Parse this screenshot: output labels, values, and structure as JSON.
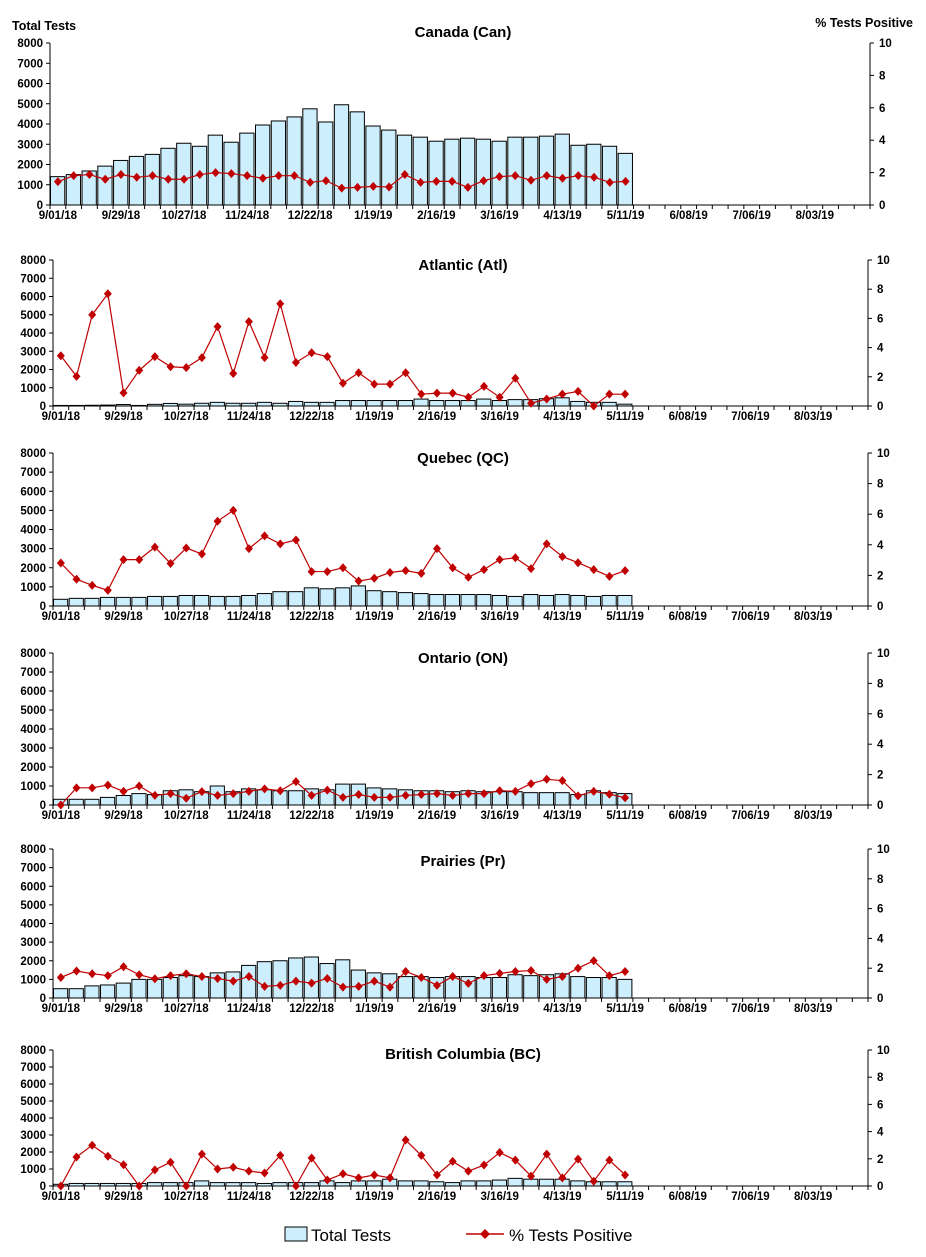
{
  "axes": {
    "left_label": "Total Tests",
    "right_label": "% Tests Positive",
    "ylim": [
      0,
      8000
    ],
    "y_ticks": [
      0,
      1000,
      2000,
      3000,
      4000,
      5000,
      6000,
      7000,
      8000
    ],
    "y2lim": [
      0,
      10
    ],
    "y2_ticks": [
      0,
      2,
      4,
      6,
      8,
      10
    ],
    "x_slots": 52,
    "x_tick_labels": [
      "9/01/18",
      "9/29/18",
      "10/27/18",
      "11/24/18",
      "12/22/18",
      "1/19/19",
      "2/16/19",
      "3/16/19",
      "4/13/19",
      "5/11/19",
      "6/08/19",
      "7/06/19",
      "8/03/19"
    ],
    "categories": [
      "9/01/18",
      "9/08/18",
      "9/15/18",
      "9/22/18",
      "9/29/18",
      "10/06/18",
      "10/13/18",
      "10/20/18",
      "10/27/18",
      "11/03/18",
      "11/10/18",
      "11/17/18",
      "11/24/18",
      "12/01/18",
      "12/08/18",
      "12/15/18",
      "12/22/18",
      "12/29/18",
      "1/05/19",
      "1/12/19",
      "1/19/19",
      "1/26/19",
      "2/02/19",
      "2/09/19",
      "2/16/19",
      "2/23/19",
      "3/02/19",
      "3/09/19",
      "3/16/19",
      "3/23/19",
      "3/30/19",
      "4/06/19",
      "4/13/19",
      "4/20/19",
      "4/27/19",
      "5/04/19",
      "5/11/19"
    ]
  },
  "legend": {
    "bars": "Total Tests",
    "line": "% Tests Positive",
    "position": "bottom"
  },
  "colors": {
    "bar_fill": "#cdeefc",
    "bar_stroke": "#000000",
    "line": "#c00000"
  },
  "chart_data": [
    {
      "type": "bar+line",
      "title": "Canada (Can)",
      "series": [
        {
          "name": "Total Tests",
          "axis": "left",
          "values": [
            1400,
            1500,
            1680,
            1920,
            2200,
            2400,
            2500,
            2800,
            3050,
            2900,
            3450,
            3100,
            3550,
            3950,
            4150,
            4350,
            4750,
            4100,
            4950,
            4600,
            3900,
            3700,
            3450,
            3350,
            3150,
            3250,
            3300,
            3250,
            3150,
            3350,
            3350,
            3400,
            3500,
            2950,
            3000,
            2900,
            2550
          ]
        },
        {
          "name": "% Tests Positive",
          "axis": "right",
          "values": [
            1.44,
            1.81,
            1.88,
            1.59,
            1.88,
            1.71,
            1.81,
            1.59,
            1.59,
            1.88,
            2.0,
            1.94,
            1.81,
            1.65,
            1.81,
            1.81,
            1.4,
            1.5,
            1.04,
            1.09,
            1.15,
            1.11,
            1.88,
            1.4,
            1.46,
            1.46,
            1.09,
            1.5,
            1.75,
            1.81,
            1.53,
            1.81,
            1.65,
            1.81,
            1.71,
            1.4,
            1.46
          ]
        }
      ]
    },
    {
      "type": "bar+line",
      "title": "Atlantic (Atl)",
      "series": [
        {
          "name": "Total Tests",
          "axis": "left",
          "values": [
            30,
            30,
            40,
            50,
            80,
            30,
            90,
            140,
            100,
            150,
            200,
            150,
            150,
            200,
            150,
            250,
            200,
            200,
            300,
            300,
            300,
            300,
            300,
            380,
            300,
            300,
            300,
            380,
            300,
            350,
            350,
            400,
            450,
            250,
            200,
            200,
            100
          ]
        },
        {
          "name": "% Tests Positive",
          "axis": "right",
          "values": [
            3.44,
            2.03,
            6.25,
            7.69,
            0.9,
            2.44,
            3.38,
            2.69,
            2.63,
            3.31,
            5.44,
            2.23,
            5.78,
            3.31,
            7.0,
            2.98,
            3.65,
            3.38,
            1.56,
            2.28,
            1.5,
            1.5,
            2.28,
            0.81,
            0.88,
            0.88,
            0.6,
            1.34,
            0.6,
            1.9,
            0.19,
            0.48,
            0.81,
            1.0,
            0,
            0.81,
            0.81
          ]
        }
      ]
    },
    {
      "type": "bar+line",
      "title": "Quebec (QC)",
      "series": [
        {
          "name": "Total Tests",
          "axis": "left",
          "values": [
            350,
            400,
            400,
            450,
            450,
            450,
            500,
            500,
            550,
            550,
            500,
            500,
            550,
            650,
            750,
            750,
            950,
            900,
            950,
            1050,
            800,
            750,
            700,
            650,
            600,
            600,
            600,
            600,
            550,
            500,
            600,
            550,
            600,
            550,
            500,
            550,
            550
          ]
        },
        {
          "name": "% Tests Positive",
          "axis": "right",
          "values": [
            2.81,
            1.75,
            1.35,
            1.03,
            3.03,
            3.03,
            3.85,
            2.78,
            3.79,
            3.4,
            5.54,
            6.25,
            3.75,
            4.58,
            4.06,
            4.31,
            2.25,
            2.25,
            2.5,
            1.63,
            1.81,
            2.19,
            2.31,
            2.13,
            3.75,
            2.5,
            1.88,
            2.38,
            3.03,
            3.15,
            2.44,
            4.06,
            3.23,
            2.83,
            2.38,
            1.94,
            2.31
          ]
        }
      ]
    },
    {
      "type": "bar+line",
      "title": "Ontario (ON)",
      "series": [
        {
          "name": "Total Tests",
          "axis": "left",
          "values": [
            300,
            300,
            300,
            400,
            500,
            600,
            550,
            750,
            800,
            700,
            1000,
            700,
            850,
            800,
            750,
            750,
            850,
            800,
            1100,
            1100,
            900,
            850,
            800,
            750,
            750,
            700,
            750,
            700,
            700,
            700,
            650,
            650,
            650,
            550,
            750,
            650,
            600
          ]
        },
        {
          "name": "% Tests Positive",
          "axis": "right",
          "values": [
            0,
            1.13,
            1.13,
            1.31,
            0.9,
            1.25,
            0.63,
            0.75,
            0.44,
            0.88,
            0.63,
            0.75,
            0.9,
            1.06,
            0.94,
            1.54,
            0.63,
            0.98,
            0.5,
            0.69,
            0.5,
            0.5,
            0.63,
            0.69,
            0.75,
            0.63,
            0.75,
            0.75,
            0.94,
            0.9,
            1.4,
            1.69,
            1.6,
            0.6,
            0.9,
            0.71,
            0.48
          ]
        }
      ]
    },
    {
      "type": "bar+line",
      "title": "Prairies (Pr)",
      "series": [
        {
          "name": "Total Tests",
          "axis": "left",
          "values": [
            500,
            500,
            650,
            700,
            800,
            1000,
            1000,
            1100,
            1200,
            1150,
            1350,
            1400,
            1750,
            1950,
            2000,
            2150,
            2200,
            1850,
            2050,
            1500,
            1350,
            1300,
            1150,
            1150,
            1100,
            1150,
            1150,
            1100,
            1100,
            1250,
            1200,
            1250,
            1300,
            1150,
            1100,
            1100,
            1000
          ]
        },
        {
          "name": "% Tests Positive",
          "axis": "right",
          "values": [
            1.38,
            1.81,
            1.63,
            1.5,
            2.1,
            1.56,
            1.29,
            1.5,
            1.63,
            1.44,
            1.31,
            1.13,
            1.44,
            0.78,
            0.85,
            1.13,
            1.0,
            1.31,
            0.73,
            0.78,
            1.13,
            0.73,
            1.78,
            1.38,
            0.85,
            1.44,
            0.98,
            1.5,
            1.65,
            1.78,
            1.84,
            1.25,
            1.44,
            2.0,
            2.5,
            1.5,
            1.78
          ]
        }
      ]
    },
    {
      "type": "bar+line",
      "title": "British Columbia (BC)",
      "series": [
        {
          "name": "Total Tests",
          "axis": "left",
          "values": [
            100,
            150,
            150,
            150,
            150,
            150,
            200,
            200,
            200,
            300,
            200,
            200,
            200,
            150,
            200,
            200,
            200,
            300,
            200,
            300,
            300,
            400,
            300,
            300,
            250,
            200,
            300,
            300,
            350,
            450,
            400,
            400,
            400,
            300,
            250,
            250,
            250
          ]
        },
        {
          "name": "% Tests Positive",
          "axis": "right",
          "values": [
            0,
            2.13,
            3.0,
            2.19,
            1.56,
            0,
            1.19,
            1.75,
            0,
            2.34,
            1.25,
            1.38,
            1.09,
            0.96,
            2.25,
            0,
            2.06,
            0.44,
            0.9,
            0.6,
            0.81,
            0.6,
            3.38,
            2.25,
            0.81,
            1.81,
            1.09,
            1.54,
            2.46,
            1.9,
            0.73,
            2.34,
            0.6,
            1.98,
            0.35,
            1.9,
            0.81
          ]
        }
      ]
    }
  ]
}
